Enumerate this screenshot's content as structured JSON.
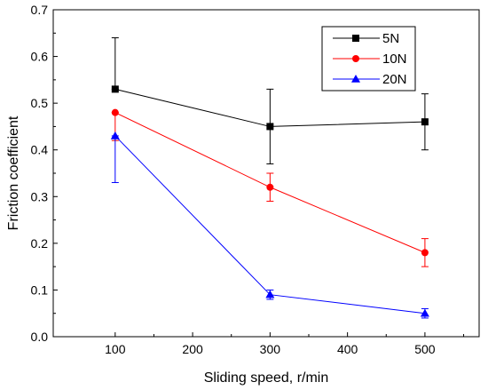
{
  "chart_data": {
    "type": "line",
    "title": "",
    "xlabel": "Sliding speed, r/min",
    "ylabel": "Friction coefficient",
    "xlim": [
      20,
      570
    ],
    "ylim": [
      0.0,
      0.7
    ],
    "xticks": [
      100,
      200,
      300,
      400,
      500
    ],
    "yticks": [
      0.0,
      0.1,
      0.2,
      0.3,
      0.4,
      0.5,
      0.6,
      0.7
    ],
    "grid": false,
    "legend_position": "top-right",
    "x": [
      100,
      300,
      500
    ],
    "series": [
      {
        "name": "5N",
        "color": "#000000",
        "marker": "square",
        "values": [
          0.53,
          0.45,
          0.46
        ],
        "err_low": [
          0.53,
          0.37,
          0.4
        ],
        "err_high": [
          0.64,
          0.53,
          0.52
        ]
      },
      {
        "name": "10N",
        "color": "#ff0000",
        "marker": "circle",
        "values": [
          0.48,
          0.32,
          0.18
        ],
        "err_low": [
          0.42,
          0.29,
          0.15
        ],
        "err_high": [
          0.48,
          0.35,
          0.21
        ]
      },
      {
        "name": "20N",
        "color": "#0000ff",
        "marker": "triangle",
        "values": [
          0.43,
          0.09,
          0.05
        ],
        "err_low": [
          0.33,
          0.08,
          0.04
        ],
        "err_high": [
          0.43,
          0.1,
          0.06
        ]
      }
    ]
  }
}
